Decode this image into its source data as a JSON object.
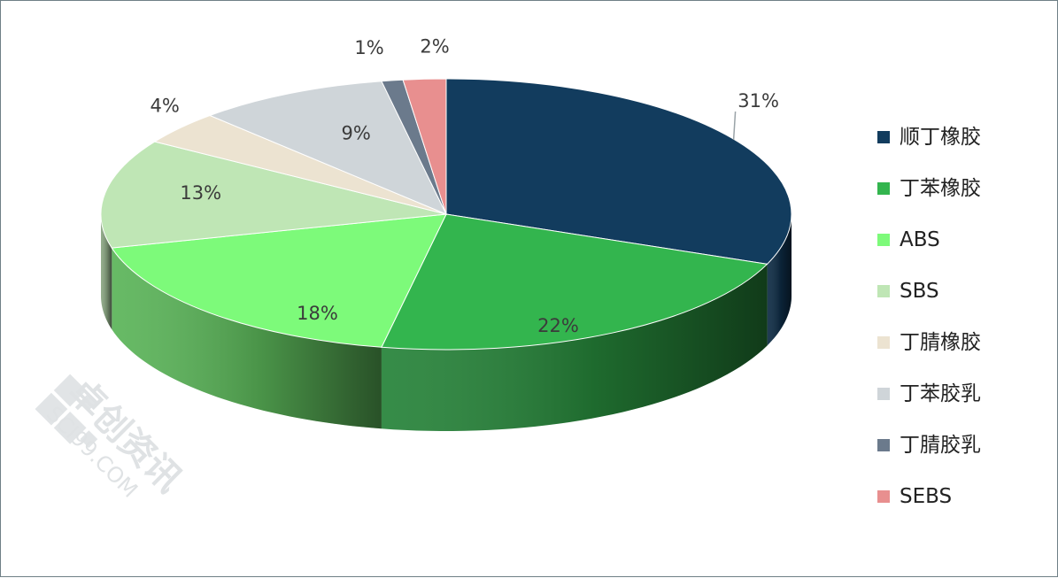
{
  "chart_data": {
    "type": "pie",
    "style": "3d",
    "categories": [
      "顺丁橡胶",
      "丁苯橡胶",
      "ABS",
      "SBS",
      "丁腈橡胶",
      "丁苯胶乳",
      "丁腈胶乳",
      "SEBS"
    ],
    "values": [
      31,
      22,
      18,
      13,
      4,
      9,
      1,
      2
    ],
    "labels": [
      "31%",
      "22%",
      "18%",
      "13%",
      "4%",
      "9%",
      "1%",
      "2%"
    ],
    "colors": [
      "#123c5e",
      "#33b54e",
      "#7dfa7a",
      "#bfe6b5",
      "#ece3d1",
      "#cfd5d9",
      "#6b7a8c",
      "#e88f8f"
    ],
    "legend_position": "right"
  },
  "watermark": {
    "brand": "卓创资讯",
    "site": "SCI99.COM"
  }
}
